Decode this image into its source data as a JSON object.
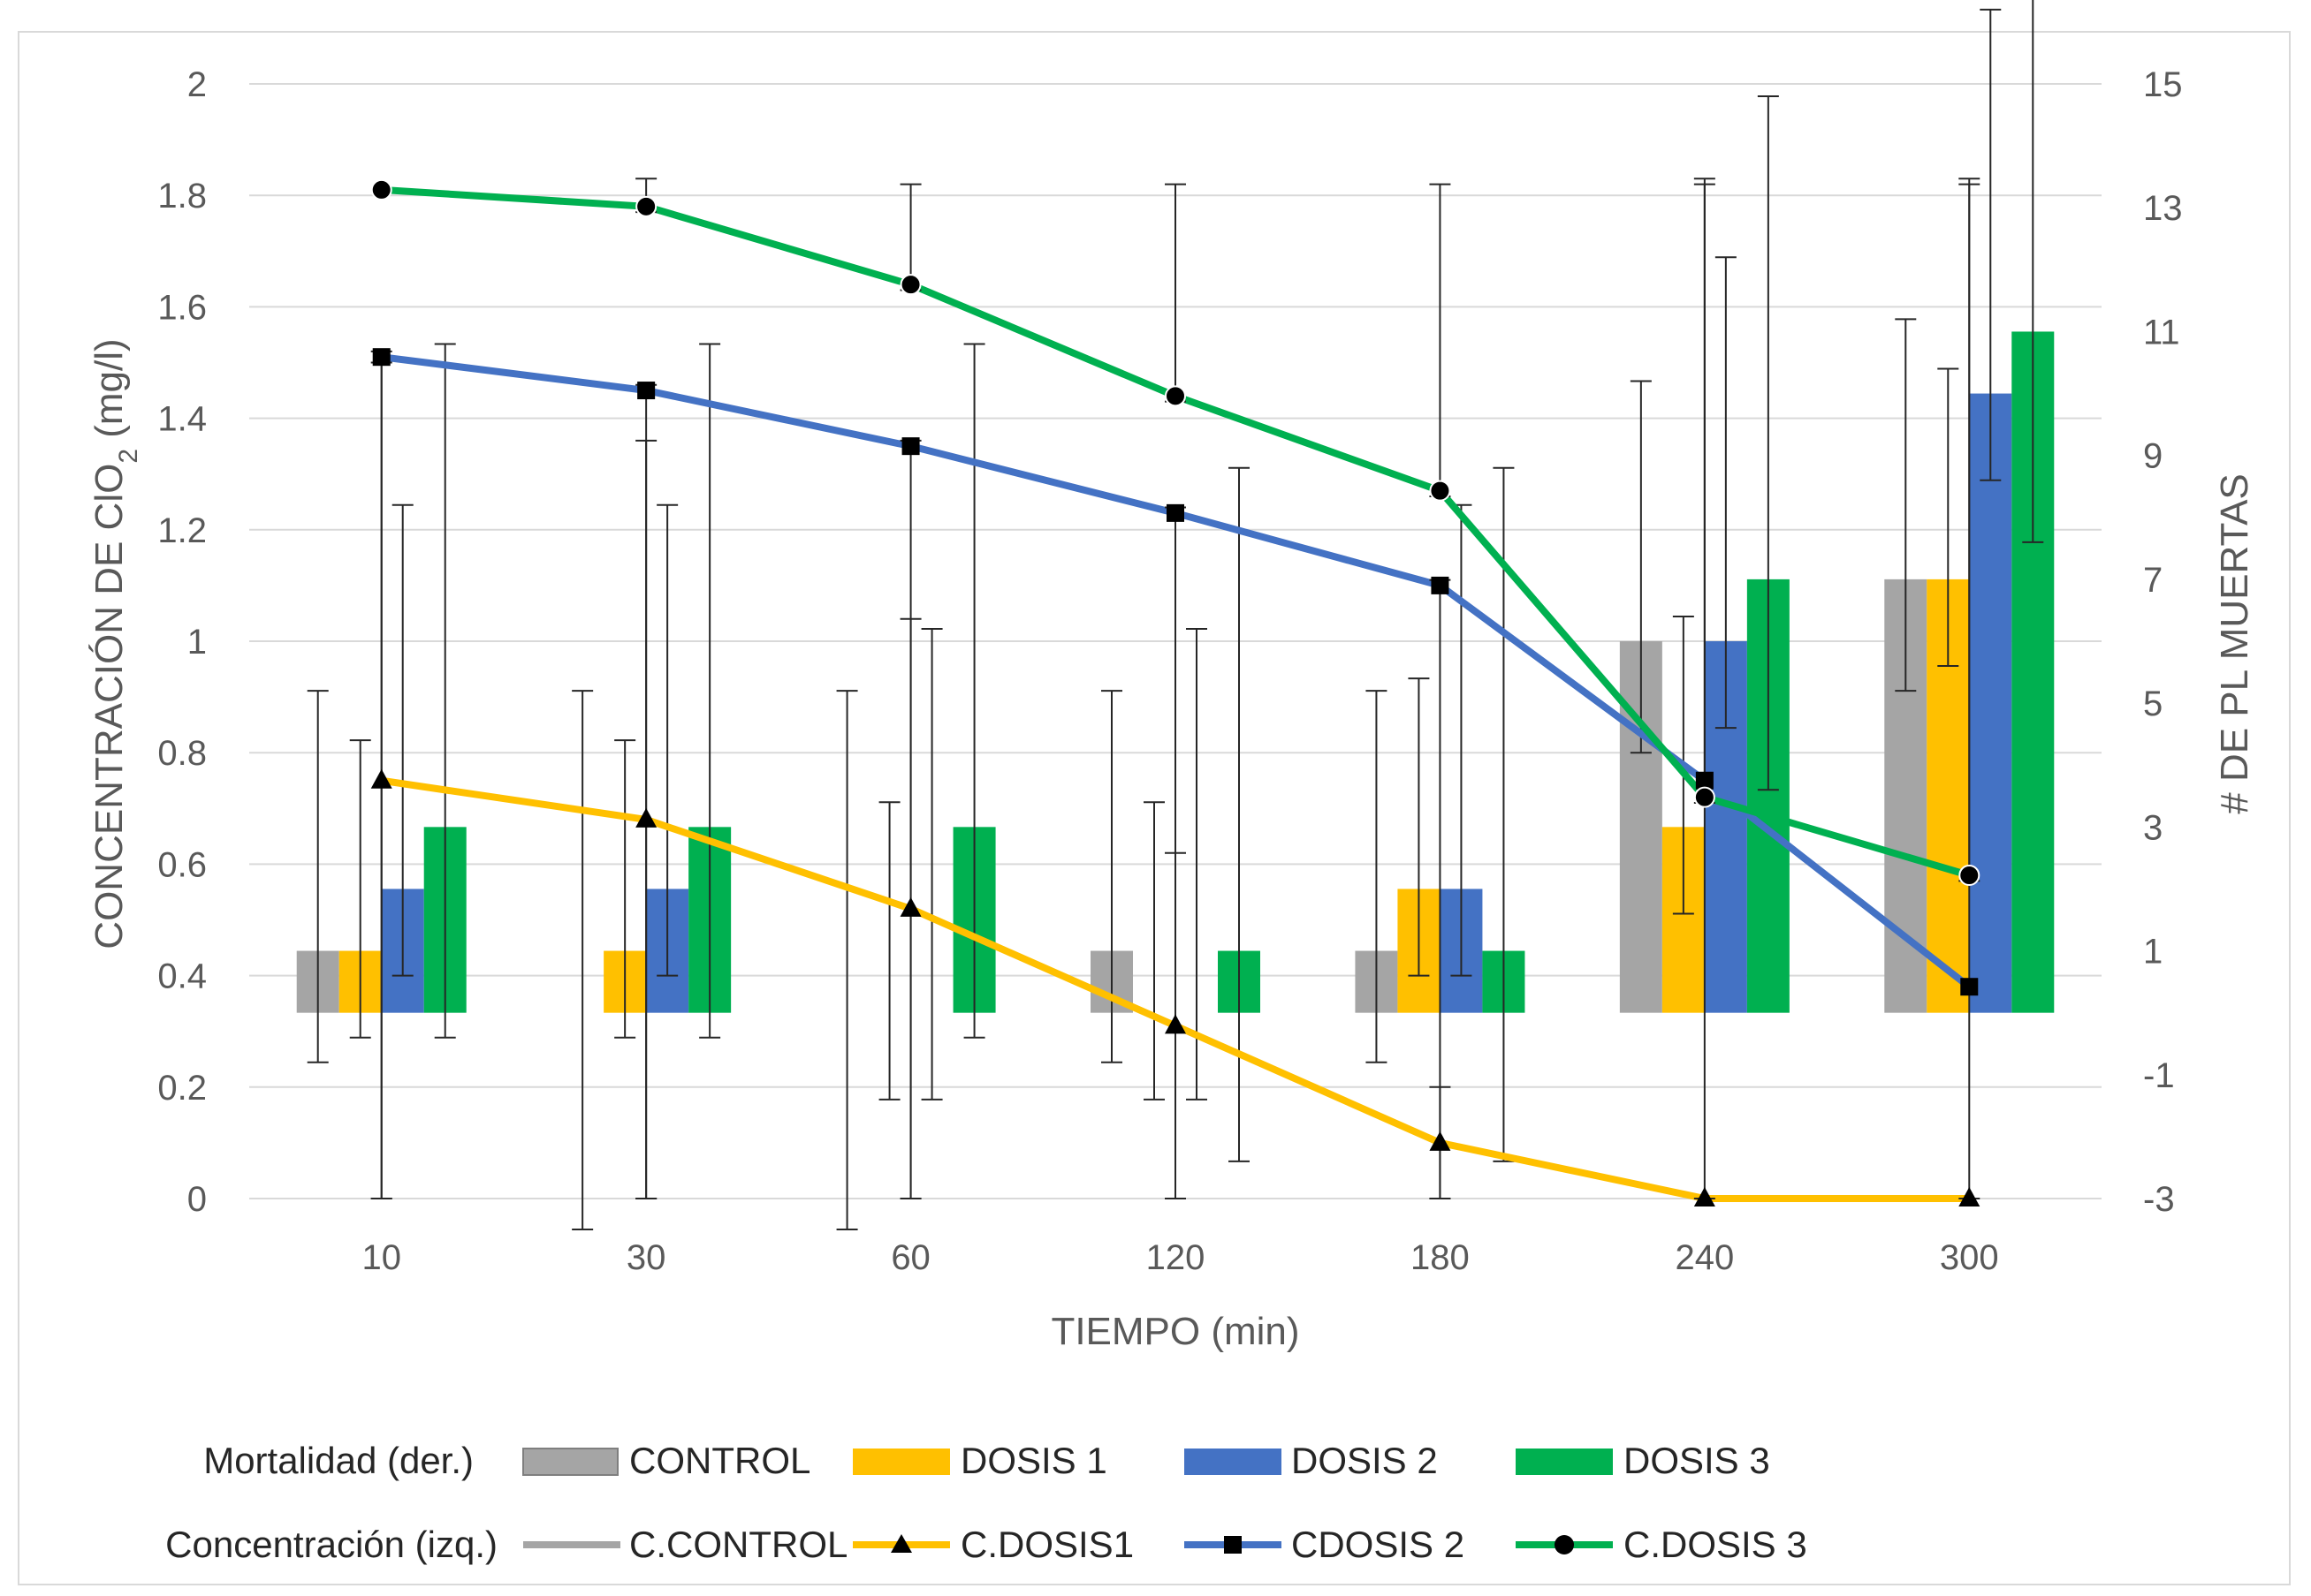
{
  "chart_data": {
    "type": "bar+line",
    "categories": [
      "10",
      "30",
      "60",
      "120",
      "180",
      "240",
      "300"
    ],
    "xlabel": "TIEMPO (min)",
    "ylabel_left_parts": [
      "CONCENTRACIÓN DE ClO",
      "2",
      " (mg/l)"
    ],
    "ylabel_right": "# DE PL MUERTAS",
    "y_left": {
      "min": 0,
      "max": 2,
      "ticks": [
        0,
        0.2,
        0.4,
        0.6,
        0.8,
        1,
        1.2,
        1.4,
        1.6,
        1.8,
        2
      ]
    },
    "y_right": {
      "min": -3,
      "max": 15,
      "ticks": [
        -3,
        -1,
        1,
        3,
        5,
        7,
        9,
        11,
        13,
        15
      ]
    },
    "grid": true,
    "legend_position": "bottom",
    "bar_series": [
      {
        "name": "CONTROL",
        "color": "#a5a5a5",
        "values": [
          1,
          0,
          0,
          1,
          1,
          6,
          7
        ],
        "err_low": [
          1.8,
          3.5,
          3.5,
          1.8,
          1.8,
          1.8,
          1.8
        ],
        "err_high": [
          4.2,
          5.2,
          5.2,
          4.2,
          4.2,
          4.2,
          4.2
        ]
      },
      {
        "name": "DOSIS 1",
        "color": "#ffc000",
        "values": [
          1,
          1,
          0,
          0,
          2,
          3,
          7
        ],
        "err_low": [
          1.4,
          1.4,
          1.4,
          1.4,
          1.4,
          1.4,
          1.4
        ],
        "err_high": [
          3.4,
          3.4,
          3.4,
          3.4,
          3.4,
          3.4,
          3.4
        ]
      },
      {
        "name": "DOSIS 2",
        "color": "#4472c4",
        "values": [
          2,
          2,
          0,
          0,
          2,
          6,
          10
        ],
        "err_low": [
          1.4,
          1.4,
          1.4,
          1.4,
          1.4,
          1.4,
          1.4
        ],
        "err_high": [
          6.2,
          6.2,
          6.2,
          6.2,
          6.2,
          6.2,
          6.2
        ]
      },
      {
        "name": "DOSIS 3",
        "color": "#00b050",
        "values": [
          3,
          3,
          3,
          1,
          1,
          7,
          11
        ],
        "err_low": [
          3.4,
          3.4,
          3.4,
          3.4,
          3.4,
          3.4,
          3.4
        ],
        "err_high": [
          7.8,
          7.8,
          7.8,
          7.8,
          7.8,
          7.8,
          7.8
        ]
      }
    ],
    "line_series": [
      {
        "name": "C.CONTROL",
        "color": "#a5a5a5",
        "marker": "none",
        "values": [],
        "err_low": [],
        "err_high": []
      },
      {
        "name": "C.DOSIS1",
        "color": "#ffc000",
        "marker": "triangle",
        "values": [
          0.75,
          0.68,
          0.52,
          0.31,
          0.1,
          0.0,
          0.0
        ],
        "err_low": [
          0.75,
          0.68,
          0.52,
          0.31,
          0.1,
          0.0,
          0.0
        ],
        "err_high": [
          0.75,
          0.68,
          0.52,
          0.31,
          0.1,
          0.0,
          0.0
        ]
      },
      {
        "name": "CDOSIS 2",
        "color": "#4472c4",
        "marker": "square",
        "values": [
          1.51,
          1.45,
          1.35,
          1.23,
          1.1,
          0.75,
          0.38
        ],
        "err_low": [
          1.51,
          1.45,
          1.35,
          1.23,
          1.1,
          0.75,
          0.38
        ],
        "err_high": [
          0.01,
          0.01,
          0.01,
          0.01,
          0.01,
          1.08,
          1.45
        ]
      },
      {
        "name": "C.DOSIS 3",
        "color": "#00b050",
        "marker": "circle",
        "values": [
          1.81,
          1.78,
          1.64,
          1.44,
          1.27,
          0.72,
          0.58
        ],
        "err_low": [
          0.01,
          0.01,
          0.01,
          0.01,
          0.01,
          0.01,
          0.01
        ],
        "err_high": [
          0.01,
          0.05,
          0.18,
          0.38,
          0.55,
          1.1,
          1.24
        ]
      }
    ],
    "legend": {
      "bars_title": "Mortalidad (der.)",
      "lines_title": "Concentración (izq.)"
    }
  }
}
